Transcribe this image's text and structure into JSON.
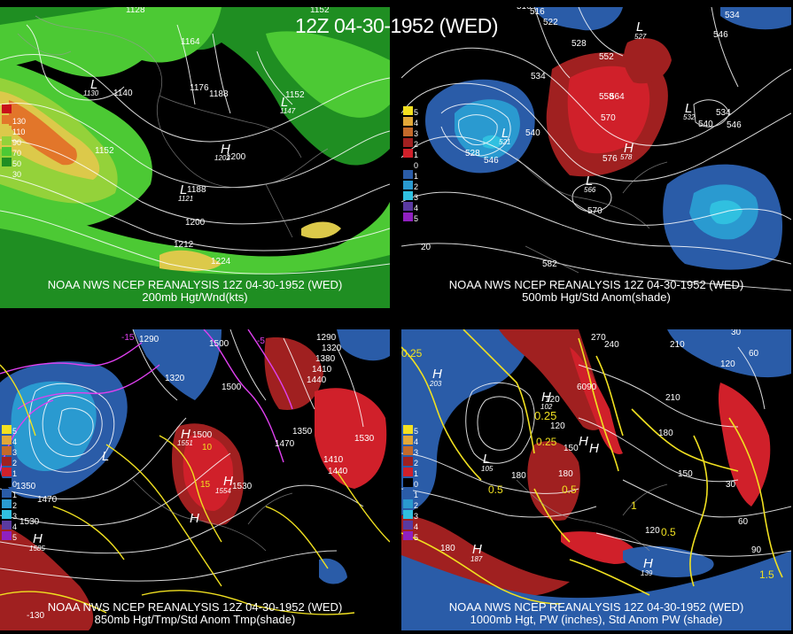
{
  "main_title": "12Z 04-30-1952 (WED)",
  "panels": {
    "tl": {
      "caption1": "NOAA NWS NCEP REANALYSIS 12Z 04-30-1952 (WED)",
      "caption2": "200mb Hgt/Wnd(kts)",
      "legend": [
        "130",
        "110",
        "90",
        "70",
        "50",
        "30"
      ],
      "legend_colors": [
        "#c8101a",
        "#e2762a",
        "#dcc94a",
        "#94d23a",
        "#4cc934",
        "#1f8e22"
      ],
      "contour_labels": [
        "1128",
        "1164",
        "1140",
        "1176",
        "1188",
        "1152",
        "1152",
        "1200",
        "1188",
        "1200",
        "1212",
        "1224",
        "1152"
      ],
      "hl_labels": [
        "L",
        "H",
        "L",
        "L",
        "H",
        "L"
      ],
      "hl_values": [
        "1130",
        "1147",
        "1202",
        "1121"
      ]
    },
    "tr": {
      "caption1": "NOAA NWS NCEP REANALYSIS 12Z 04-30-1952 (WED)",
      "caption2": "500mb Hgt/Std Anom(shade)",
      "legend": [
        "5",
        "4",
        "3",
        "2",
        "1",
        "0",
        "1",
        "2",
        "3",
        "4",
        "5"
      ],
      "legend_colors": [
        "#f4e020",
        "#e2a838",
        "#c46a2a",
        "#a02020",
        "#d0202a",
        "#000000",
        "#2a5ca8",
        "#2a9ad0",
        "#30c0e0",
        "#5a3aa0",
        "#9020c0"
      ],
      "contour_labels": [
        "510",
        "516",
        "522",
        "534",
        "546",
        "528",
        "552",
        "534",
        "558",
        "564",
        "540",
        "570",
        "528",
        "546",
        "576",
        "534",
        "546",
        "540",
        "570",
        "582",
        "20"
      ],
      "hl_labels": [
        "L",
        "L",
        "H",
        "L",
        "L"
      ],
      "hl_values": [
        "527",
        "521",
        "578",
        "566",
        "532"
      ]
    },
    "bl": {
      "caption1": "NOAA NWS NCEP REANALYSIS 12Z 04-30-1952 (WED)",
      "caption2": "850mb Hgt/Tmp/Std Anom Tmp(shade)",
      "legend": [
        "5",
        "4",
        "3",
        "2",
        "1",
        "0",
        "1",
        "2",
        "3",
        "4",
        "5"
      ],
      "legend_colors": [
        "#f4e020",
        "#e2a838",
        "#c46a2a",
        "#a02020",
        "#d0202a",
        "#000000",
        "#2a5ca8",
        "#2a9ad0",
        "#30c0e0",
        "#5a3aa0",
        "#9020c0"
      ],
      "contour_labels": [
        "1290",
        "1500",
        "1320",
        "1380",
        "1410",
        "1440",
        "1290",
        "1320",
        "1500",
        "1500",
        "1470",
        "1350",
        "1530",
        "1410",
        "1440",
        "1530",
        "1350",
        "1470",
        "1530",
        "-15",
        "-5",
        "10",
        "15",
        "-130"
      ],
      "hl_labels": [
        "L",
        "H",
        "H",
        "H",
        "H"
      ],
      "hl_values": [
        "1551",
        "1554",
        "1585"
      ]
    },
    "br": {
      "caption1": "NOAA NWS NCEP REANALYSIS 12Z 04-30-1952 (WED)",
      "caption2": "1000mb Hgt, PW (inches), Std Anom PW (shade)",
      "legend": [
        "5",
        "4",
        "3",
        "2",
        "1",
        "0",
        "1",
        "2",
        "3",
        "4",
        "5"
      ],
      "legend_colors": [
        "#f4e020",
        "#e2a838",
        "#c46a2a",
        "#a02020",
        "#d0202a",
        "#000000",
        "#2a5ca8",
        "#2a9ad0",
        "#30c0e0",
        "#5a3aa0",
        "#9020c0"
      ],
      "contour_labels": [
        "270",
        "210",
        "240",
        "30",
        "120",
        "60",
        "120",
        "0.25",
        "210",
        "120",
        "150",
        "180",
        "150",
        "180",
        "30",
        "60",
        "90",
        "1.5",
        "0.5",
        "0.5",
        "1",
        "0.25",
        "0.5",
        "180",
        "120",
        "180",
        "6090",
        "0.25"
      ],
      "hl_labels": [
        "H",
        "H",
        "H",
        "H",
        "L",
        "H",
        "H"
      ],
      "hl_values": [
        "203",
        "187",
        "139",
        "102",
        "105"
      ]
    }
  }
}
